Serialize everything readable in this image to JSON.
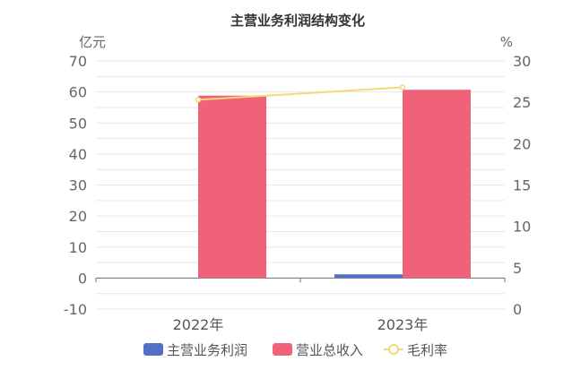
{
  "chart_data": {
    "type": "bar",
    "title": "主营业务利润结构变化",
    "categories": [
      "2022年",
      "2023年"
    ],
    "y_left": {
      "unit": "亿元",
      "min": -10,
      "max": 70,
      "step": 10
    },
    "y_right": {
      "unit": "%",
      "min": 0,
      "max": 30,
      "step": 5
    },
    "series": [
      {
        "name": "主营业务利润",
        "kind": "bar",
        "axis": "left",
        "color": "#5470c6",
        "values": [
          0,
          1.2
        ]
      },
      {
        "name": "营业总收入",
        "kind": "bar",
        "axis": "left",
        "color": "#f0627a",
        "values": [
          58.8,
          60.7
        ]
      },
      {
        "name": "毛利率",
        "kind": "line",
        "axis": "right",
        "color": "#f5d87a",
        "values": [
          25.3,
          26.8
        ]
      }
    ],
    "legend_position": "bottom",
    "grid": true
  }
}
